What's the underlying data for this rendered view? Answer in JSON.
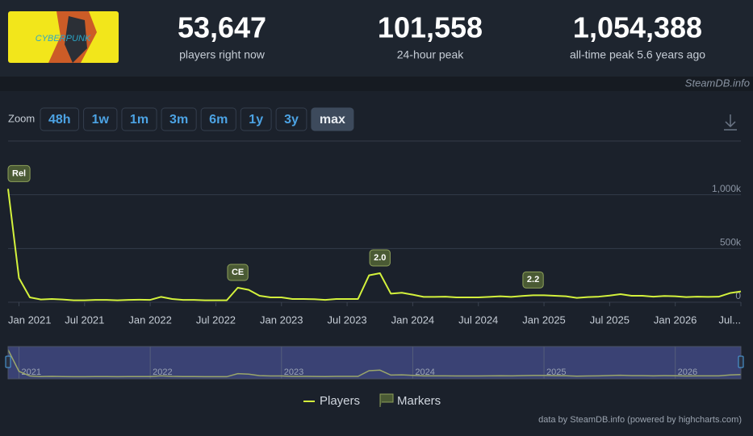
{
  "stats": [
    {
      "value": "53,647",
      "label": "players right now"
    },
    {
      "value": "101,558",
      "label": "24-hour peak"
    },
    {
      "value": "1,054,388",
      "label": "all-time peak 5.6 years ago"
    }
  ],
  "watermark": "SteamDB.info",
  "zoom": {
    "label": "Zoom",
    "buttons": [
      "48h",
      "1w",
      "1m",
      "3m",
      "6m",
      "1y",
      "3y",
      "max"
    ],
    "active": 7
  },
  "chart_data": {
    "type": "line",
    "x": [
      2020.917,
      2021.0,
      2021.083,
      2021.167,
      2021.25,
      2021.333,
      2021.417,
      2021.5,
      2021.583,
      2021.667,
      2021.75,
      2021.833,
      2021.917,
      2022.0,
      2022.083,
      2022.167,
      2022.25,
      2022.333,
      2022.417,
      2022.5,
      2022.583,
      2022.667,
      2022.75,
      2022.833,
      2022.917,
      2023.0,
      2023.083,
      2023.167,
      2023.25,
      2023.333,
      2023.417,
      2023.5,
      2023.583,
      2023.667,
      2023.75,
      2023.833,
      2023.917,
      2024.0,
      2024.083,
      2024.167,
      2024.25,
      2024.333,
      2024.417,
      2024.5,
      2024.583,
      2024.667,
      2024.75,
      2024.833,
      2024.917,
      2025.0,
      2025.083,
      2025.167,
      2025.25,
      2025.333,
      2025.417,
      2025.5,
      2025.583,
      2025.667,
      2025.75,
      2025.833,
      2025.917,
      2026.0,
      2026.083,
      2026.167,
      2026.25,
      2026.333,
      2026.417,
      2026.5
    ],
    "series": [
      {
        "name": "Players",
        "color": "#d4f23c",
        "values": [
          1054388,
          225000,
          45000,
          25000,
          30000,
          25000,
          18000,
          18000,
          22000,
          22000,
          18000,
          22000,
          23000,
          22000,
          50000,
          30000,
          22000,
          22000,
          18000,
          18000,
          18000,
          135000,
          115000,
          60000,
          45000,
          45000,
          30000,
          30000,
          28000,
          22000,
          30000,
          30000,
          30000,
          250000,
          270000,
          80000,
          88000,
          70000,
          50000,
          50000,
          52000,
          45000,
          45000,
          45000,
          50000,
          55000,
          50000,
          58000,
          65000,
          65000,
          60000,
          55000,
          40000,
          48000,
          52000,
          62000,
          75000,
          60000,
          60000,
          52000,
          58000,
          55000,
          48000,
          52000,
          50000,
          52000,
          85000,
          100000
        ]
      }
    ],
    "markers": {
      "name": "Markers",
      "color": "#4a5a34",
      "items": [
        {
          "label": "Rel",
          "x": 2020.917
        },
        {
          "label": "CE",
          "x": 2022.667
        },
        {
          "label": "2.0",
          "x": 2023.75
        },
        {
          "label": "2.2",
          "x": 2024.917
        }
      ]
    },
    "xlim": [
      2020.917,
      2026.5
    ],
    "ylim": [
      0,
      1500000
    ],
    "xticks": [
      {
        "value": 2021.0,
        "label": "Jan 2021"
      },
      {
        "value": 2021.5,
        "label": "Jul 2021"
      },
      {
        "value": 2022.0,
        "label": "Jan 2022"
      },
      {
        "value": 2022.5,
        "label": "Jul 2022"
      },
      {
        "value": 2023.0,
        "label": "Jan 2023"
      },
      {
        "value": 2023.5,
        "label": "Jul 2023"
      },
      {
        "value": 2024.0,
        "label": "Jan 2024"
      },
      {
        "value": 2024.5,
        "label": "Jul 2024"
      },
      {
        "value": 2025.0,
        "label": "Jan 2025"
      },
      {
        "value": 2025.5,
        "label": "Jul 2025"
      },
      {
        "value": 2026.0,
        "label": "Jan 2026"
      },
      {
        "value": 2026.5,
        "label": "Jul..."
      }
    ],
    "yticks": [
      0,
      {
        "value": 500000,
        "label": "500k"
      },
      {
        "value": 1000000,
        "label": "1,000k"
      }
    ],
    "grid": true,
    "navigator_ticks": [
      {
        "value": 2021,
        "label": "2021"
      },
      {
        "value": 2022,
        "label": "2022"
      },
      {
        "value": 2023,
        "label": "2023"
      },
      {
        "value": 2024,
        "label": "2024"
      },
      {
        "value": 2025,
        "label": "2025"
      },
      {
        "value": 2026,
        "label": "2026"
      }
    ],
    "credits": "data by SteamDB.info (powered by highcharts.com)"
  }
}
